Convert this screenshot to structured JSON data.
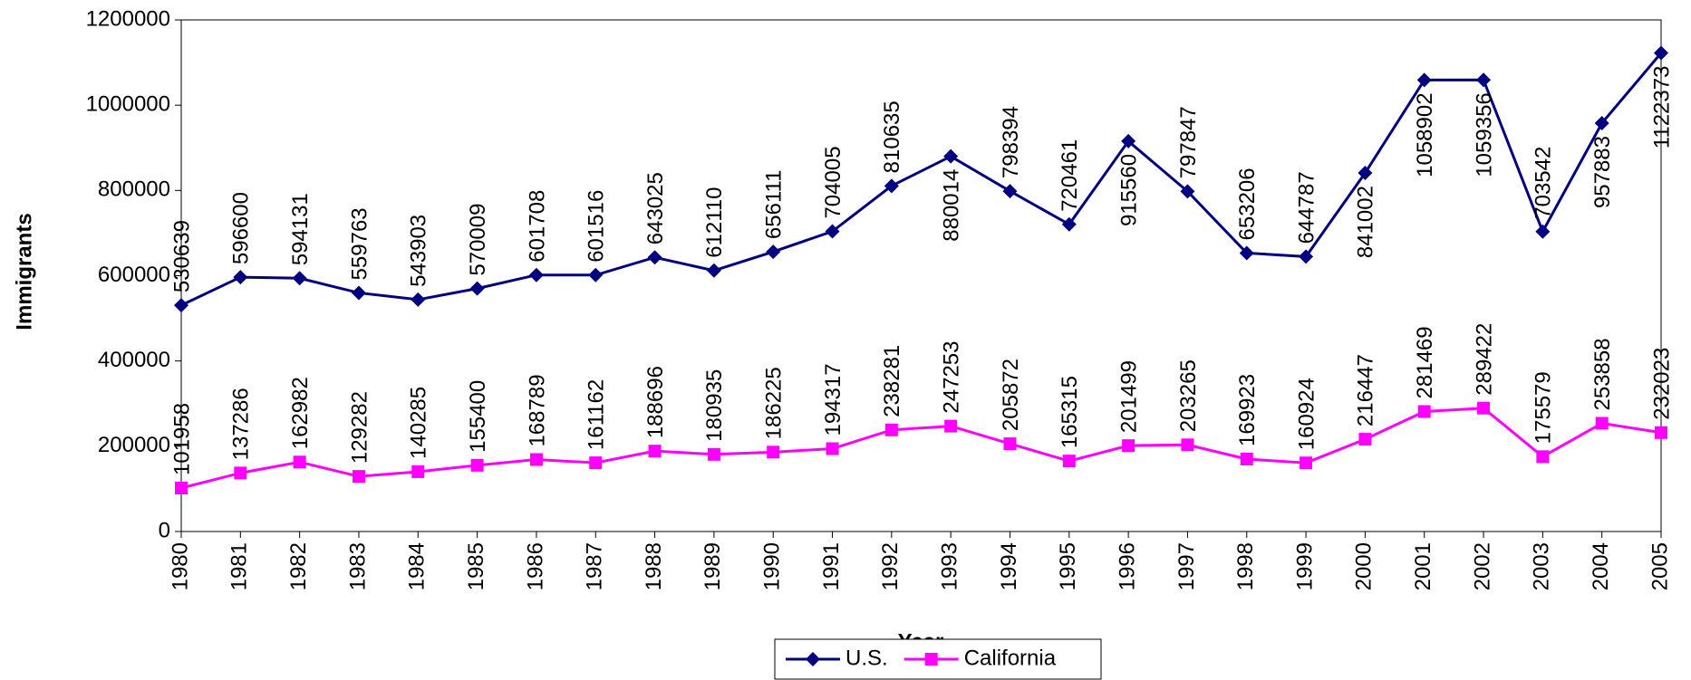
{
  "chart_data": {
    "type": "line",
    "x_label": "Year",
    "y_label": "Immigrants",
    "categories": [
      "1980",
      "1981",
      "1982",
      "1983",
      "1984",
      "1985",
      "1986",
      "1987",
      "1988",
      "1989",
      "1990",
      "1991",
      "1992",
      "1993",
      "1994",
      "1995",
      "1996",
      "1997",
      "1998",
      "1999",
      "2000",
      "2001",
      "2002",
      "2003",
      "2004",
      "2005"
    ],
    "series": [
      {
        "name": "U.S.",
        "color": "#000080",
        "marker": "diamond",
        "values": [
          530639,
          596600,
          594131,
          559763,
          543903,
          570009,
          601708,
          601516,
          643025,
          612110,
          656111,
          704005,
          810635,
          880014,
          798394,
          720461,
          915560,
          797847,
          653206,
          644787,
          841002,
          1058902,
          1059356,
          703542,
          957883,
          1122373
        ]
      },
      {
        "name": "California",
        "color": "#ff00ff",
        "marker": "square",
        "values": [
          101958,
          137286,
          162982,
          129282,
          140285,
          155400,
          168789,
          161162,
          188696,
          180935,
          186225,
          194317,
          238281,
          247253,
          205872,
          165315,
          201499,
          203265,
          169923,
          160924,
          216447,
          281469,
          289422,
          175579,
          253858,
          232023
        ]
      }
    ],
    "ylim": [
      0,
      1200000
    ],
    "yticks": [
      0,
      200000,
      400000,
      600000,
      800000,
      1000000,
      1200000
    ],
    "legend": "bottom"
  }
}
